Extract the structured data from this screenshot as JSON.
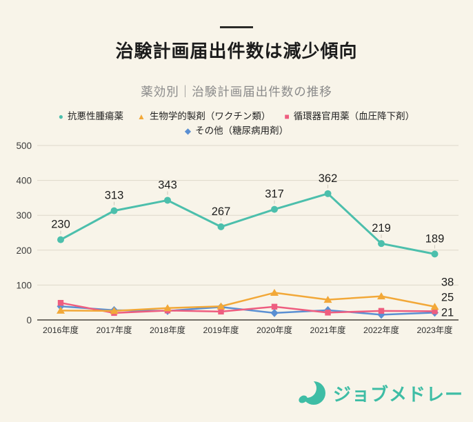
{
  "header": {
    "title": "治験計画届出件数は減少傾向"
  },
  "legend": [
    {
      "label": "抗悪性腫瘍薬",
      "marker": "circle",
      "color": "#4CBFAC"
    },
    {
      "label": "生物学的製剤（ワクチン類）",
      "marker": "triangle",
      "color": "#F2A838"
    },
    {
      "label": "循環器官用薬（血圧降下剤）",
      "marker": "square",
      "color": "#EE5D7F"
    },
    {
      "label": "その他（糖尿病用剤）",
      "marker": "diamond",
      "color": "#5A8FD2"
    }
  ],
  "chart_data": {
    "type": "line",
    "title": "薬効別｜治験計画届出件数の推移",
    "categories": [
      "2016年度",
      "2017年度",
      "2018年度",
      "2019年度",
      "2020年度",
      "2021年度",
      "2022年度",
      "2023年度"
    ],
    "series": [
      {
        "name": "抗悪性腫瘍薬",
        "color": "#4CBFAC",
        "marker": "circle",
        "values": [
          230,
          313,
          343,
          267,
          317,
          362,
          219,
          189
        ],
        "labels_visible": true
      },
      {
        "name": "生物学的製剤（ワクチン類）",
        "color": "#F2A838",
        "marker": "triangle",
        "values": [
          27,
          26,
          34,
          39,
          78,
          58,
          68,
          38
        ],
        "end_label": "38"
      },
      {
        "name": "循環器官用薬（血圧降下剤）",
        "color": "#EE5D7F",
        "marker": "square",
        "values": [
          49,
          20,
          27,
          24,
          38,
          21,
          26,
          25
        ],
        "end_label": "25"
      },
      {
        "name": "その他（糖尿病用剤）",
        "color": "#5A8FD2",
        "marker": "diamond",
        "values": [
          39,
          28,
          26,
          37,
          20,
          28,
          15,
          21
        ],
        "end_label": "21"
      }
    ],
    "ylim": [
      0,
      500
    ],
    "yticks": [
      0,
      100,
      200,
      300,
      400,
      500
    ],
    "grid": true,
    "legend_position": "top"
  },
  "colors": {
    "background": "#F8F4E9",
    "gridline": "#DED8CA",
    "axis": "#45423C",
    "tick_text": "#3C3C3C",
    "value_label": "#1D1D1D",
    "brand": "#3EBDA5"
  },
  "footer": {
    "logo_text": "ジョブメドレー"
  }
}
